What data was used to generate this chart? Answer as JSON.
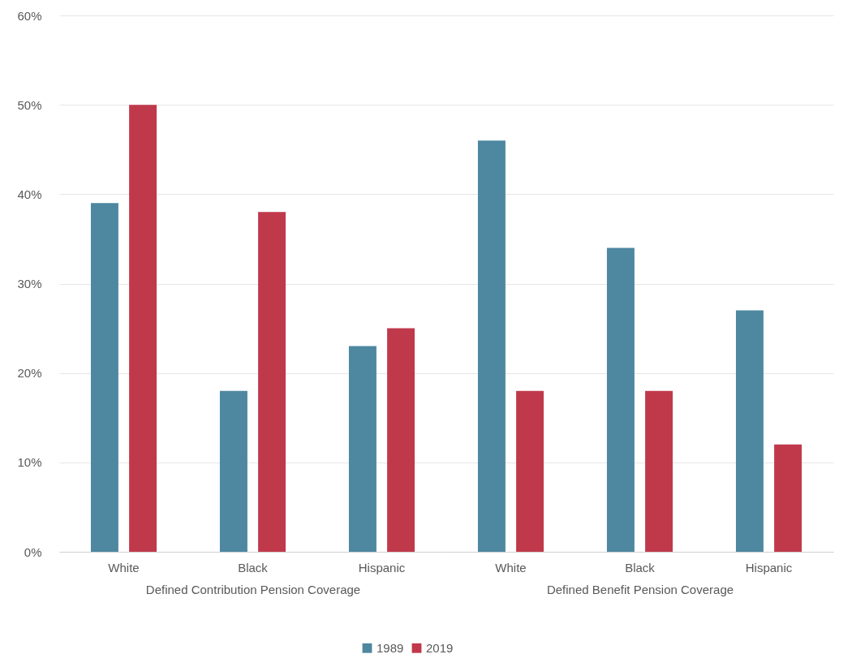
{
  "chart_data": [
    {
      "type": "bar",
      "categories": [
        "White",
        "Black",
        "Hispanic"
      ],
      "xlabel": "Defined Contribution Pension Coverage",
      "series": [
        {
          "name": "1989",
          "color": "#4e87a0",
          "values": [
            39,
            18,
            23
          ]
        },
        {
          "name": "2019",
          "color": "#c0394b",
          "values": [
            50,
            38,
            25
          ]
        }
      ],
      "ylim": [
        0,
        60
      ],
      "yticks": [
        {
          "value": 0,
          "label": "0%"
        },
        {
          "value": 10,
          "label": "10%"
        },
        {
          "value": 20,
          "label": "20%"
        },
        {
          "value": 30,
          "label": "30%"
        },
        {
          "value": 40,
          "label": "40%"
        },
        {
          "value": 50,
          "label": "50%"
        },
        {
          "value": 60,
          "label": "60%"
        }
      ],
      "grid": "y",
      "legend": "bottom"
    },
    {
      "type": "bar",
      "categories": [
        "White",
        "Black",
        "Hispanic"
      ],
      "xlabel": "Defined Benefit Pension Coverage",
      "series": [
        {
          "name": "1989",
          "color": "#4e87a0",
          "values": [
            46,
            34,
            27
          ]
        },
        {
          "name": "2019",
          "color": "#c0394b",
          "values": [
            18,
            18,
            12
          ]
        }
      ],
      "ylim": [
        0,
        60
      ],
      "yticks": [
        0,
        10,
        20,
        30,
        40,
        50,
        60
      ],
      "grid": "y",
      "tick_labels": "x",
      "legend": false
    }
  ]
}
